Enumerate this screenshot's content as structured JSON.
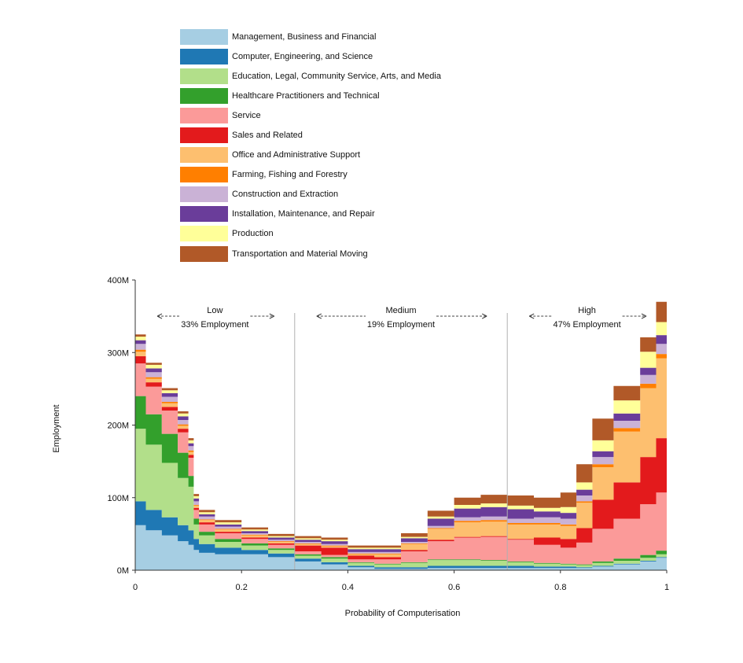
{
  "chart_data": {
    "type": "area",
    "stacked": true,
    "title": "",
    "xlabel": "Probability of Computerisation",
    "ylabel": "Employment",
    "xlim": [
      0,
      1
    ],
    "ylim": [
      0,
      400
    ],
    "x_ticks": [
      "0",
      "0.2",
      "0.4",
      "0.6",
      "0.8",
      "1"
    ],
    "y_ticks": [
      "0M",
      "100M",
      "200M",
      "300M",
      "400M"
    ],
    "legend_position": "top-left",
    "grid": false,
    "zones": [
      {
        "name": "Low",
        "share": "33% Employment"
      },
      {
        "name": "Medium",
        "share": "19% Employment"
      },
      {
        "name": "High",
        "share": "47% Employment"
      }
    ],
    "zone_boundaries": [
      0.3,
      0.7
    ],
    "x": [
      0,
      0.02,
      0.05,
      0.08,
      0.1,
      0.11,
      0.12,
      0.15,
      0.2,
      0.25,
      0.3,
      0.35,
      0.4,
      0.45,
      0.5,
      0.55,
      0.6,
      0.65,
      0.7,
      0.75,
      0.8,
      0.83,
      0.86,
      0.9,
      0.95,
      0.98,
      1.0
    ],
    "series": [
      {
        "name": "Management, Business and Financial",
        "color": "#a6cee3",
        "values": [
          62,
          55,
          48,
          40,
          35,
          28,
          24,
          22,
          22,
          18,
          12,
          8,
          4,
          2,
          2,
          3,
          3,
          3,
          3,
          3,
          3,
          3,
          5,
          8,
          12,
          17,
          20
        ]
      },
      {
        "name": "Computer, Engineering, and Science",
        "color": "#1f78b4",
        "values": [
          33,
          28,
          25,
          22,
          20,
          15,
          12,
          9,
          6,
          5,
          4,
          3,
          2,
          2,
          2,
          3,
          3,
          3,
          3,
          2,
          2,
          1,
          1,
          1,
          1,
          1,
          2
        ]
      },
      {
        "name": "Education, Legal, Community Service, Arts, and Media",
        "color": "#b2df8a",
        "values": [
          100,
          90,
          75,
          65,
          60,
          20,
          12,
          8,
          6,
          5,
          4,
          5,
          4,
          4,
          6,
          8,
          8,
          7,
          5,
          4,
          3,
          3,
          4,
          4,
          4,
          4,
          4
        ]
      },
      {
        "name": "Healthcare Practitioners and Technical",
        "color": "#33a02c",
        "values": [
          45,
          42,
          40,
          35,
          15,
          8,
          5,
          4,
          3,
          2,
          2,
          2,
          1,
          1,
          1,
          1,
          1,
          1,
          1,
          1,
          1,
          1,
          2,
          3,
          4,
          5,
          6
        ]
      },
      {
        "name": "Service",
        "color": "#fb9a99",
        "values": [
          45,
          38,
          32,
          28,
          25,
          12,
          10,
          8,
          6,
          5,
          4,
          3,
          4,
          6,
          15,
          25,
          30,
          32,
          30,
          25,
          22,
          30,
          45,
          55,
          70,
          80,
          90
        ]
      },
      {
        "name": "Sales and Related",
        "color": "#e31a1c",
        "values": [
          10,
          6,
          5,
          5,
          4,
          3,
          3,
          2,
          2,
          2,
          8,
          10,
          5,
          3,
          2,
          2,
          1,
          1,
          1,
          10,
          12,
          20,
          40,
          50,
          65,
          75,
          90
        ]
      },
      {
        "name": "Office and Administrative Support",
        "color": "#fdbf6f",
        "values": [
          6,
          5,
          5,
          4,
          4,
          3,
          3,
          3,
          3,
          2,
          2,
          2,
          2,
          4,
          8,
          15,
          20,
          20,
          20,
          18,
          18,
          35,
          45,
          70,
          95,
          110,
          135
        ]
      },
      {
        "name": "Farming, Fishing and Forestry",
        "color": "#ff7f00",
        "values": [
          3,
          2,
          2,
          2,
          2,
          1,
          1,
          1,
          1,
          1,
          1,
          1,
          1,
          1,
          1,
          1,
          2,
          2,
          2,
          2,
          2,
          2,
          4,
          5,
          6,
          6,
          7
        ]
      },
      {
        "name": "Construction and Extraction",
        "color": "#cab2d6",
        "values": [
          8,
          7,
          7,
          6,
          6,
          5,
          4,
          3,
          2,
          2,
          2,
          2,
          2,
          2,
          2,
          3,
          5,
          5,
          6,
          8,
          8,
          8,
          10,
          10,
          12,
          14,
          15
        ]
      },
      {
        "name": "Installation, Maintenance, and Repair",
        "color": "#6a3d9a",
        "values": [
          5,
          5,
          5,
          5,
          4,
          4,
          3,
          3,
          3,
          3,
          3,
          4,
          4,
          4,
          5,
          10,
          12,
          13,
          13,
          8,
          8,
          8,
          8,
          10,
          10,
          12,
          12
        ]
      },
      {
        "name": "Production",
        "color": "#ffff99",
        "values": [
          5,
          5,
          4,
          4,
          4,
          3,
          3,
          3,
          2,
          2,
          2,
          2,
          2,
          2,
          2,
          3,
          5,
          5,
          5,
          5,
          8,
          10,
          15,
          18,
          22,
          18,
          15
        ]
      },
      {
        "name": "Transportation and Material Moving",
        "color": "#b15928",
        "values": [
          3,
          3,
          3,
          3,
          3,
          3,
          3,
          3,
          3,
          3,
          3,
          3,
          3,
          3,
          5,
          8,
          10,
          12,
          14,
          14,
          20,
          25,
          30,
          20,
          20,
          28,
          4
        ]
      }
    ]
  }
}
